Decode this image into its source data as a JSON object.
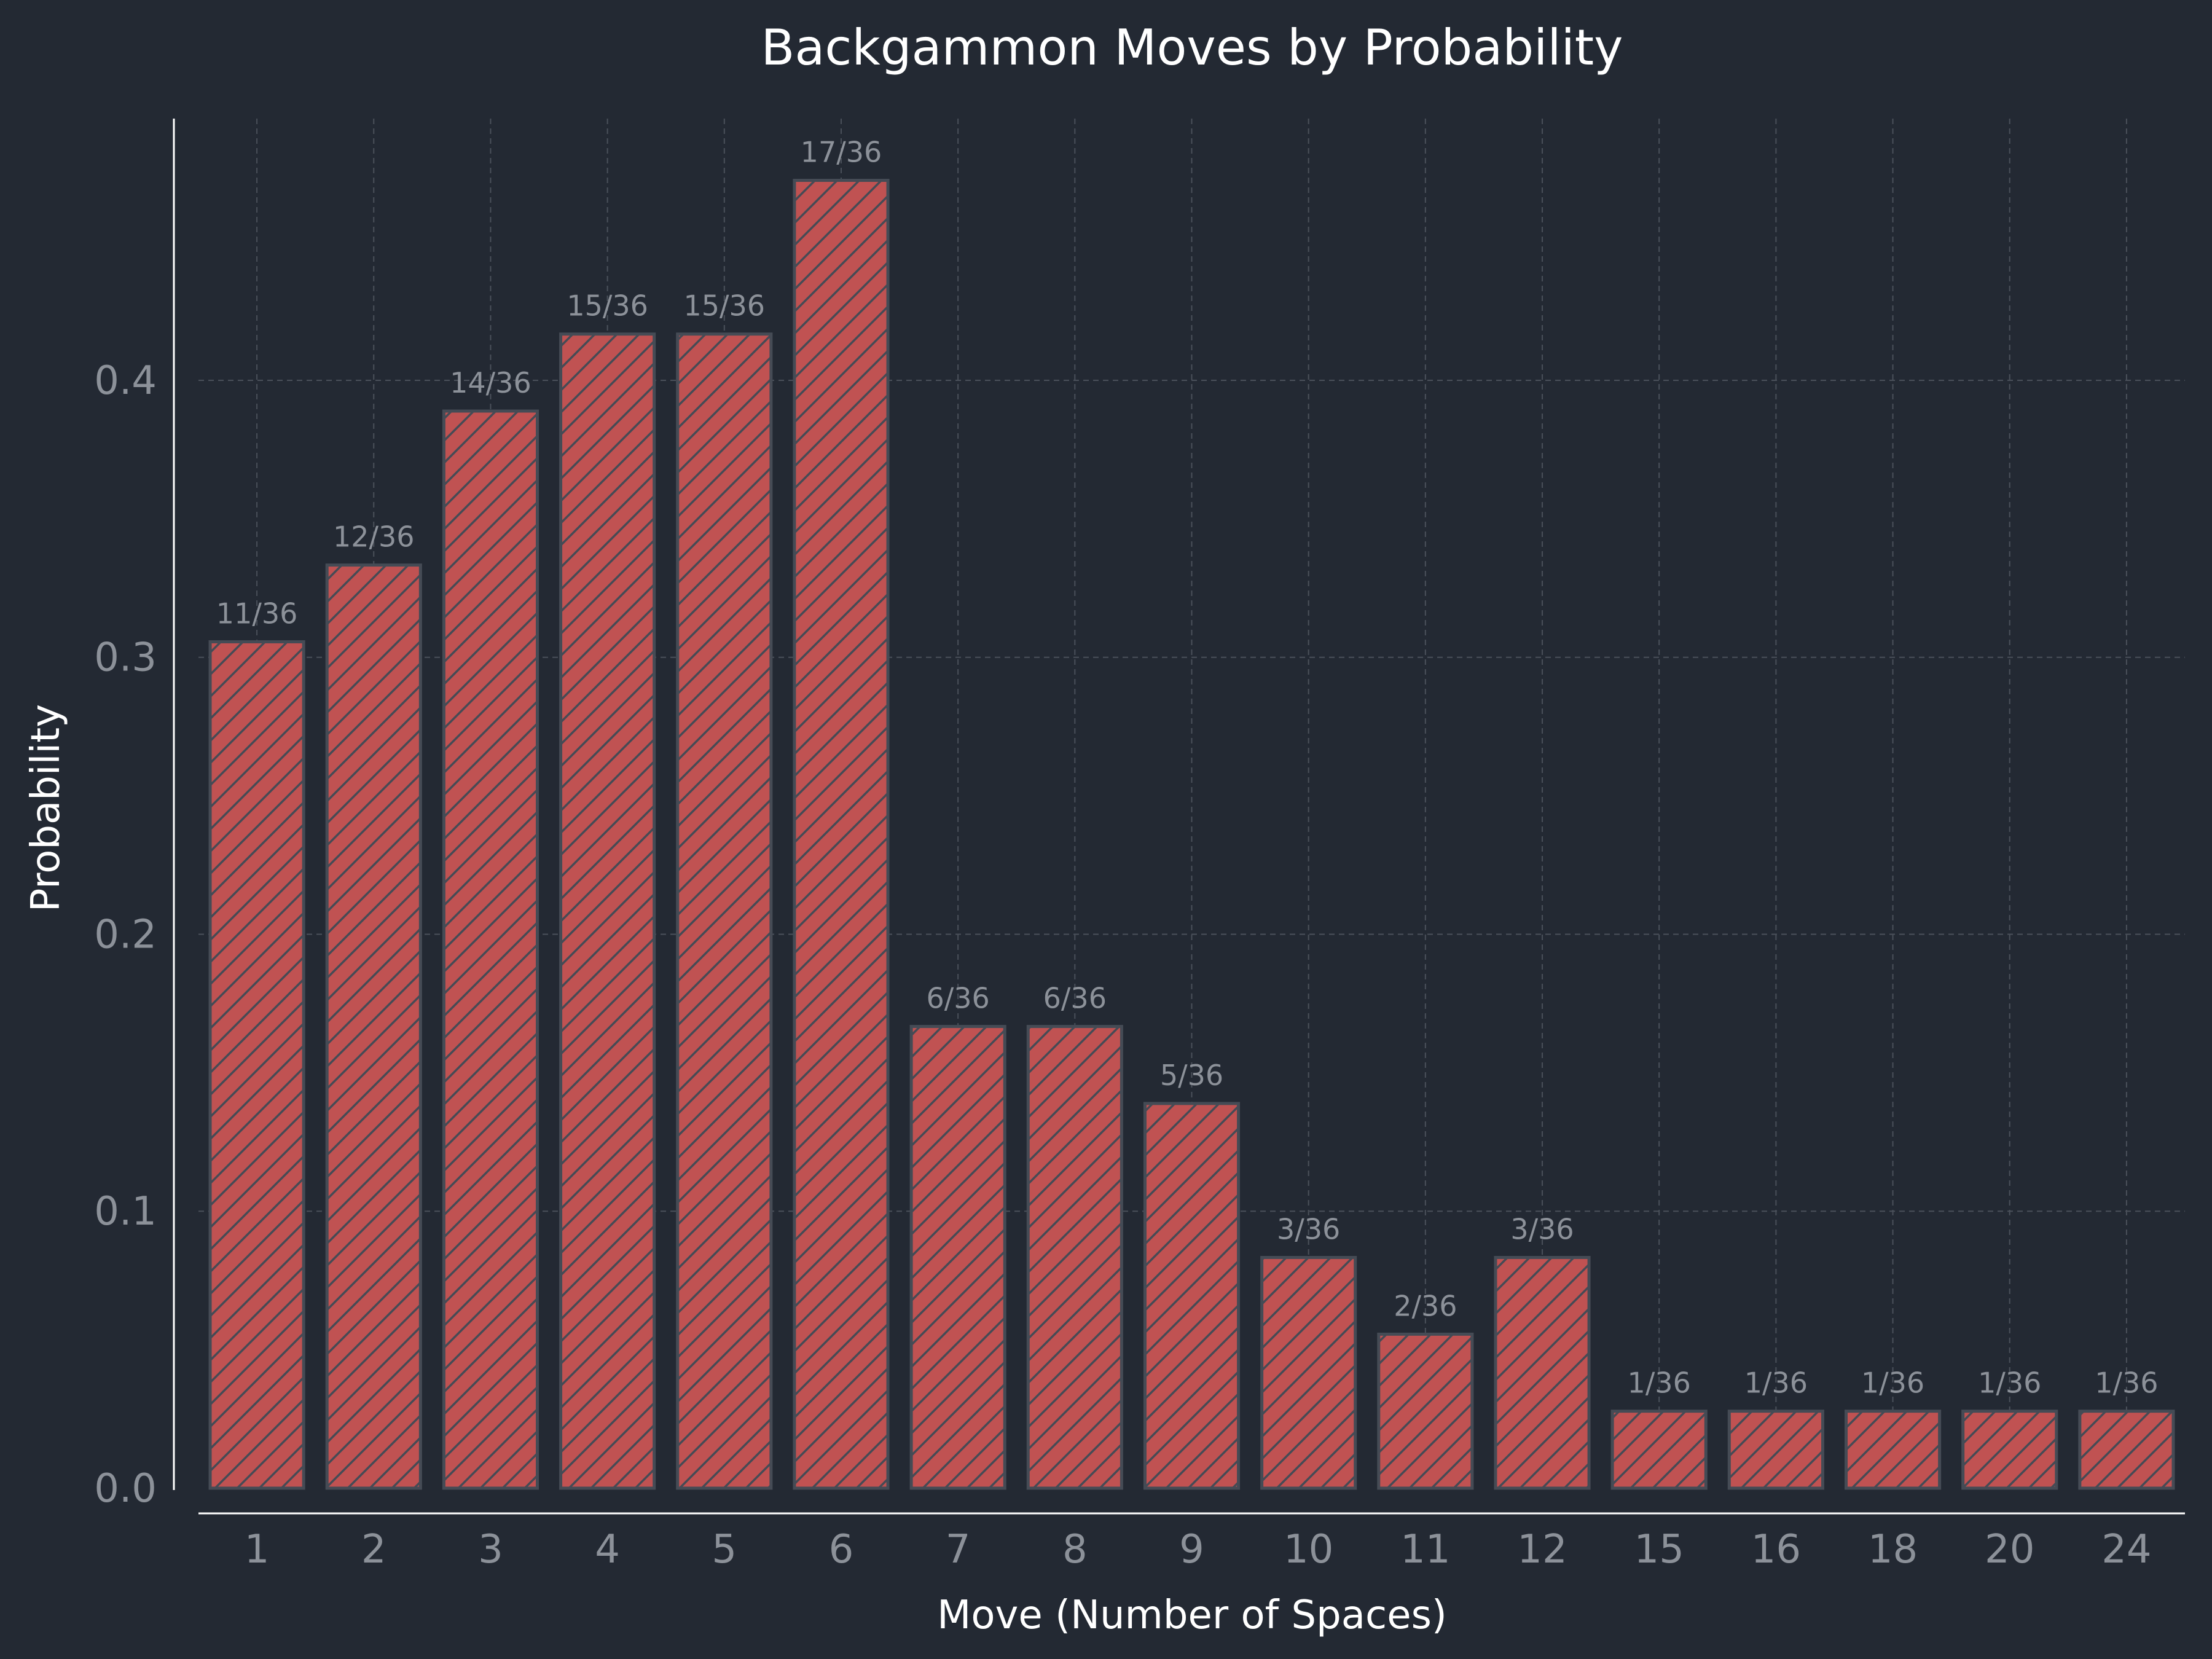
{
  "chart_data": {
    "type": "bar",
    "title": "Backgammon Moves by Probability",
    "xlabel": "Move (Number of Spaces)",
    "ylabel": "Probability",
    "ylim": [
      0,
      0.4945
    ],
    "yticks": [
      0.0,
      0.1,
      0.2,
      0.3,
      0.4
    ],
    "ytick_labels": [
      "0.0",
      "0.1",
      "0.2",
      "0.3",
      "0.4"
    ],
    "grid": true,
    "categories": [
      "1",
      "2",
      "3",
      "4",
      "5",
      "6",
      "7",
      "8",
      "9",
      "10",
      "11",
      "12",
      "15",
      "16",
      "18",
      "20",
      "24"
    ],
    "values": [
      0.3056,
      0.3333,
      0.3889,
      0.4167,
      0.4167,
      0.4722,
      0.1667,
      0.1667,
      0.1389,
      0.0833,
      0.0556,
      0.0833,
      0.0278,
      0.0278,
      0.0278,
      0.0278,
      0.0278
    ],
    "value_labels": [
      "11/36",
      "12/36",
      "14/36",
      "15/36",
      "15/36",
      "17/36",
      "6/36",
      "6/36",
      "5/36",
      "3/36",
      "2/36",
      "3/36",
      "1/36",
      "1/36",
      "1/36",
      "1/36",
      "1/36"
    ],
    "bar_color": "#c05252",
    "bar_edge_color": "#454b55",
    "bar_pattern": "diagonal-hatch",
    "background_color": "#232933"
  }
}
